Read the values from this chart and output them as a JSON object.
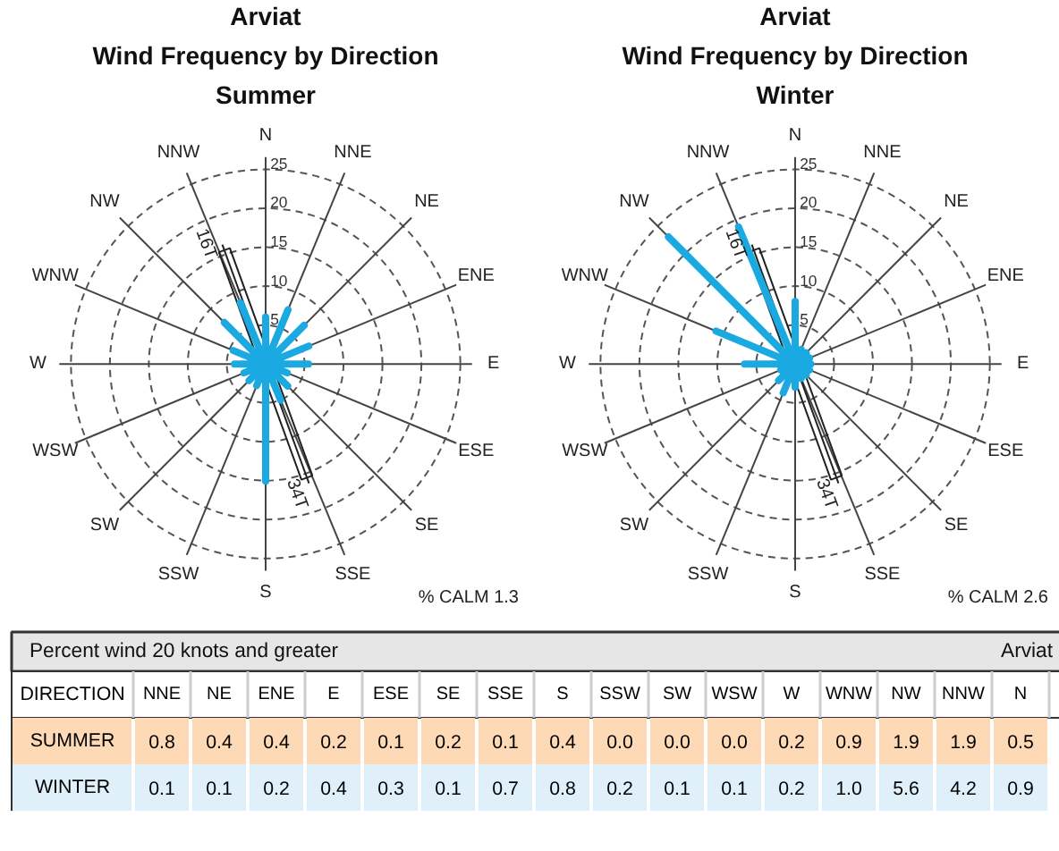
{
  "chart_data": [
    {
      "type": "radar",
      "title": "Arviat",
      "subtitle": "Wind Frequency by Direction\nSummer",
      "categories": [
        "N",
        "NNE",
        "NE",
        "ENE",
        "E",
        "ESE",
        "SE",
        "SSE",
        "S",
        "SSW",
        "SW",
        "WSW",
        "W",
        "WNW",
        "NW",
        "NNW"
      ],
      "series": [
        {
          "type": "bar",
          "color": "#1ba9e1",
          "values": [
            6,
            7.5,
            7,
            6,
            5.5,
            3,
            4,
            5,
            15,
            3,
            3,
            3,
            4,
            4.5,
            7.5,
            8.5
          ]
        }
      ],
      "ylim": [
        0,
        25
      ],
      "yticks": [
        5,
        10,
        15,
        20,
        25
      ],
      "annotations": [
        "% CALM 1.3",
        "16T",
        "34T"
      ]
    },
    {
      "type": "radar",
      "title": "Arviat",
      "subtitle": "Wind Frequency by Direction\nWinter",
      "categories": [
        "N",
        "NNE",
        "NE",
        "ENE",
        "E",
        "ESE",
        "SE",
        "SSE",
        "S",
        "SSW",
        "SW",
        "WSW",
        "W",
        "WNW",
        "NW",
        "NNW"
      ],
      "series": [
        {
          "type": "bar",
          "color": "#1ba9e1",
          "values": [
            8,
            2,
            2,
            2,
            2,
            2,
            2,
            2,
            3,
            4,
            3,
            2,
            6.5,
            11,
            23,
            19
          ]
        }
      ],
      "ylim": [
        0,
        25
      ],
      "yticks": [
        5,
        10,
        15,
        20,
        25
      ],
      "annotations": [
        "% CALM 2.6",
        "16T",
        "34T"
      ]
    },
    {
      "type": "other",
      "title": "Percent wind 20 knots and greater",
      "xlabel": "DIRECTION",
      "categories": [
        "NNE",
        "NE",
        "ENE",
        "E",
        "ESE",
        "SE",
        "SSE",
        "S",
        "SSW",
        "SW",
        "WSW",
        "W",
        "WNW",
        "NW",
        "NNW",
        "N"
      ],
      "series": [
        {
          "name": "SUMMER",
          "color": "#fdd9b5",
          "values": [
            0.8,
            0.4,
            0.4,
            0.2,
            0.1,
            0.2,
            0.1,
            0.4,
            0.0,
            0.0,
            0.0,
            0.2,
            0.9,
            1.9,
            1.9,
            0.5
          ],
          "value_labels": [
            "0.8",
            "0.4",
            "0.4",
            "0.2",
            "0.1",
            "0.2",
            "0.1",
            "0.4",
            "0.0",
            "0.0",
            "0.0",
            "0.2",
            "0.9",
            "1.9",
            "1.9",
            "0.5"
          ]
        },
        {
          "name": "WINTER",
          "color": "#dff0fa",
          "values": [
            0.1,
            0.1,
            0.2,
            0.4,
            0.3,
            0.1,
            0.7,
            0.8,
            0.2,
            0.1,
            0.1,
            0.2,
            1.0,
            5.6,
            4.2,
            0.9
          ],
          "value_labels": [
            "0.1",
            "0.1",
            "0.2",
            "0.4",
            "0.3",
            "0.1",
            "0.7",
            "0.8",
            "0.2",
            "0.1",
            "0.1",
            "0.2",
            "1.0",
            "5.6",
            "4.2",
            "0.9"
          ]
        }
      ],
      "annotations": [
        "Arviat"
      ]
    }
  ]
}
